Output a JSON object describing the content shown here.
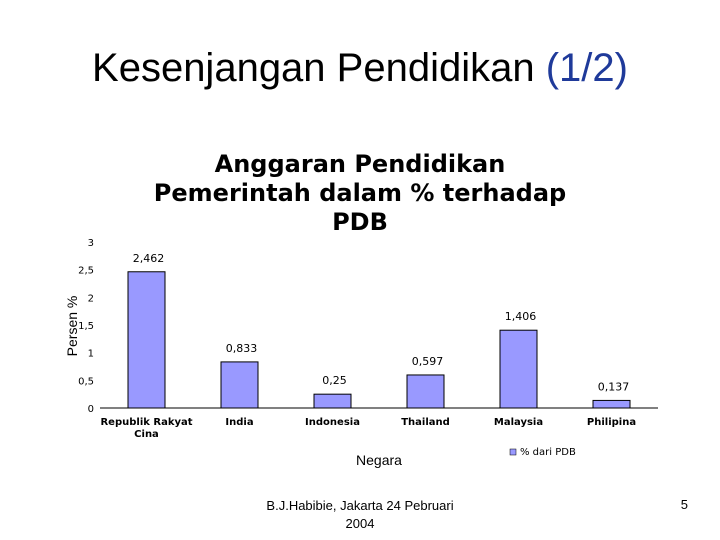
{
  "slide": {
    "title": "Kesenjangan Pendidikan ",
    "title_accent": "(1/2)",
    "footer_line1": "B.J.Habibie, Jakarta 24 Pebruari",
    "footer_line2": "2004",
    "page_number": "5"
  },
  "chart_data": {
    "type": "bar",
    "title_lines": [
      "Anggaran Pendidikan",
      "Pemerintah dalam % terhadap",
      "PDB"
    ],
    "xlabel": "Negara",
    "ylabel": "Persen %",
    "ylim": [
      0,
      3
    ],
    "yticks": [
      "0",
      "0,5",
      "1",
      "1,5",
      "2",
      "2,5",
      "3"
    ],
    "categories": [
      "Republik Rakyat Cina",
      "India",
      "Indonesia",
      "Thailand",
      "Malaysia",
      "Philipina"
    ],
    "category_lines": [
      [
        "Republik Rakyat",
        "Cina"
      ],
      [
        "India"
      ],
      [
        "Indonesia"
      ],
      [
        "Thailand"
      ],
      [
        "Malaysia"
      ],
      [
        "Philipina"
      ]
    ],
    "series": [
      {
        "name": "% dari PDB",
        "values": [
          2.462,
          0.833,
          0.25,
          0.597,
          1.406,
          0.137
        ],
        "labels": [
          "2,462",
          "0,833",
          "0,25",
          "0,597",
          "1,406",
          "0,137"
        ],
        "color": "#9999ff"
      }
    ],
    "legend_position": "bottom-right",
    "grid": false
  }
}
